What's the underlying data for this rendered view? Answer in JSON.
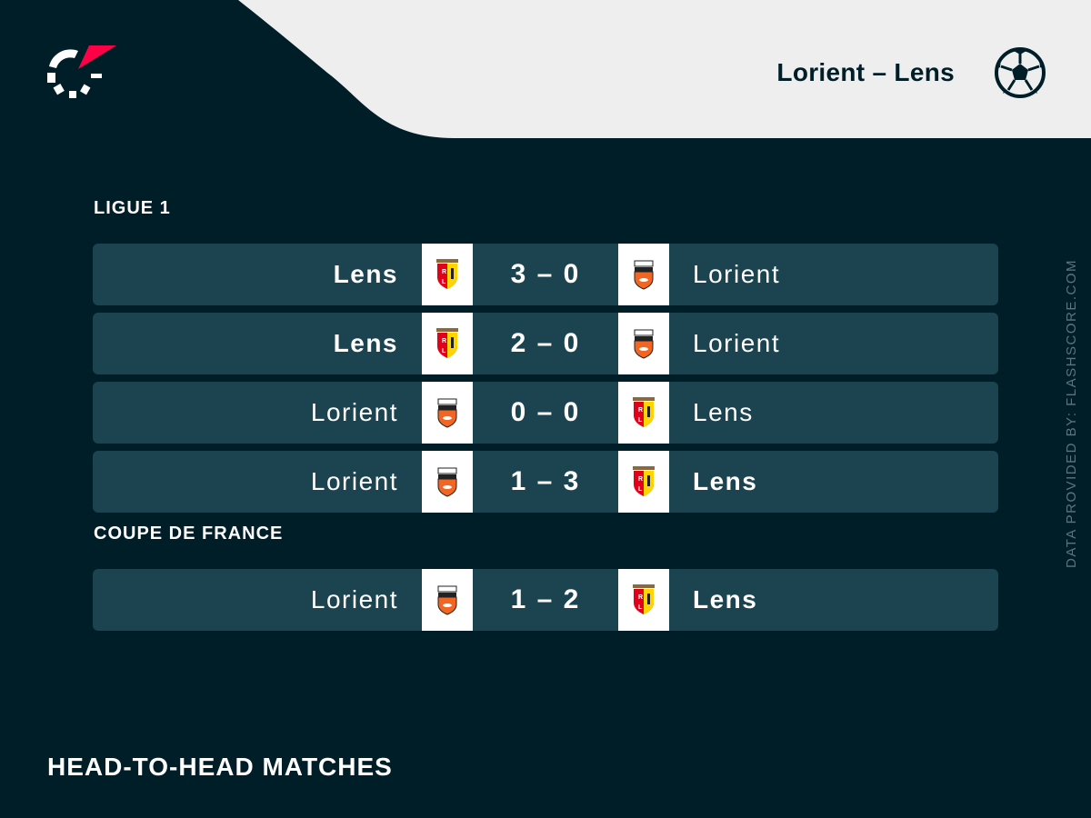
{
  "header": {
    "title": "Lorient – Lens",
    "sport_icon": "football-icon"
  },
  "colors": {
    "background": "#001e28",
    "row": "#1b4350",
    "header": "#eeeeee",
    "accent": "#ff0046"
  },
  "groups": [
    {
      "competition": "LIGUE 1",
      "matches": [
        {
          "home": "Lens",
          "away": "Lorient",
          "home_crest": "lens",
          "away_crest": "lorient",
          "score": "3 – 0",
          "winner": "home"
        },
        {
          "home": "Lens",
          "away": "Lorient",
          "home_crest": "lens",
          "away_crest": "lorient",
          "score": "2 – 0",
          "winner": "home"
        },
        {
          "home": "Lorient",
          "away": "Lens",
          "home_crest": "lorient",
          "away_crest": "lens",
          "score": "0 – 0",
          "winner": "draw"
        },
        {
          "home": "Lorient",
          "away": "Lens",
          "home_crest": "lorient",
          "away_crest": "lens",
          "score": "1 – 3",
          "winner": "away"
        }
      ]
    },
    {
      "competition": "COUPE DE FRANCE",
      "matches": [
        {
          "home": "Lorient",
          "away": "Lens",
          "home_crest": "lorient",
          "away_crest": "lens",
          "score": "1 – 2",
          "winner": "away"
        }
      ]
    }
  ],
  "footer": {
    "title": "HEAD-TO-HEAD MATCHES"
  },
  "credit": "DATA PROVIDED BY: FLASHSCORE.COM"
}
